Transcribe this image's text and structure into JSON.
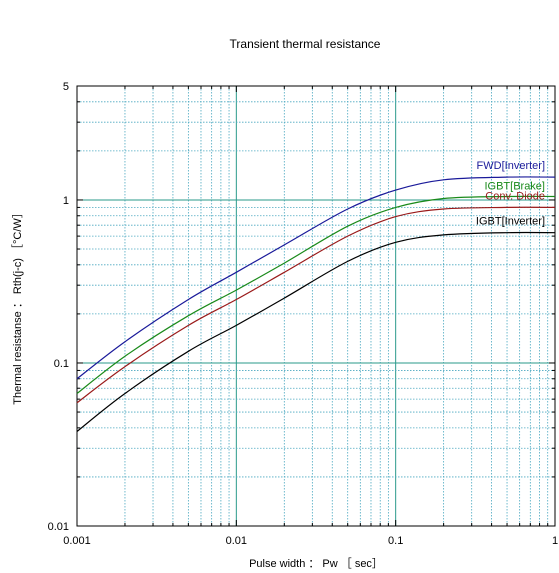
{
  "chart_data": {
    "type": "line",
    "title": "Transient thermal resistance",
    "xlabel": "Pulse width ： Pw ［ sec］",
    "ylabel": "Thermal resistanse ： Rth(j-c) ［°C/W］",
    "x_scale": "log",
    "y_scale": "log",
    "xlim": [
      0.001,
      1
    ],
    "ylim": [
      0.01,
      5
    ],
    "x_ticks": [
      {
        "value": 0.001,
        "label": "0.001"
      },
      {
        "value": 0.01,
        "label": "0.01"
      },
      {
        "value": 0.1,
        "label": "0.1"
      },
      {
        "value": 1,
        "label": "1"
      }
    ],
    "y_ticks": [
      {
        "value": 0.01,
        "label": "0.01"
      },
      {
        "value": 0.1,
        "label": "0.1"
      },
      {
        "value": 1,
        "label": "1"
      },
      {
        "value": 5,
        "label": "5"
      }
    ],
    "grid": true,
    "series": [
      {
        "name": "FWD[Inverter]",
        "color": "#1a1a9a",
        "x": [
          0.001,
          0.002,
          0.005,
          0.01,
          0.02,
          0.05,
          0.1,
          0.2,
          0.5,
          1
        ],
        "y": [
          0.08,
          0.135,
          0.245,
          0.36,
          0.53,
          0.88,
          1.15,
          1.33,
          1.38,
          1.38
        ]
      },
      {
        "name": "IGBT[Brake]",
        "color": "#1a8a1a",
        "x": [
          0.001,
          0.002,
          0.005,
          0.01,
          0.02,
          0.05,
          0.1,
          0.2,
          0.5,
          1
        ],
        "y": [
          0.065,
          0.11,
          0.195,
          0.28,
          0.41,
          0.69,
          0.9,
          1.02,
          1.05,
          1.05
        ]
      },
      {
        "name": "Conv. Diode",
        "color": "#9a1a1a",
        "x": [
          0.001,
          0.002,
          0.005,
          0.01,
          0.02,
          0.05,
          0.1,
          0.2,
          0.5,
          1
        ],
        "y": [
          0.057,
          0.095,
          0.17,
          0.245,
          0.36,
          0.6,
          0.79,
          0.88,
          0.9,
          0.9
        ]
      },
      {
        "name": "IGBT[Inverter]",
        "color": "#000000",
        "x": [
          0.001,
          0.002,
          0.005,
          0.01,
          0.02,
          0.05,
          0.1,
          0.2,
          0.5,
          1
        ],
        "y": [
          0.038,
          0.065,
          0.118,
          0.17,
          0.25,
          0.42,
          0.55,
          0.61,
          0.63,
          0.63
        ]
      }
    ],
    "grid_colors": {
      "major": "#2a9a8a",
      "minor": "#4aa8c0"
    },
    "plot_border_color": "#000000"
  }
}
